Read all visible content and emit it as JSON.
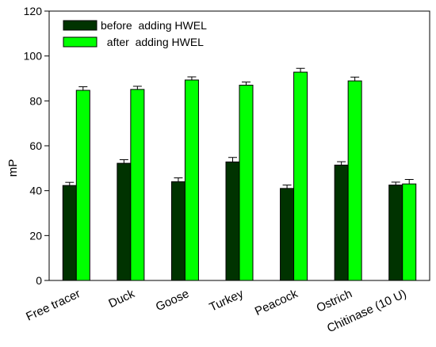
{
  "chart_data": {
    "type": "bar",
    "title": "",
    "xlabel": "",
    "ylabel": "mP",
    "ylim": [
      0,
      120
    ],
    "yticks": [
      0,
      20,
      40,
      60,
      80,
      100,
      120
    ],
    "grid": false,
    "legend_position": "top-left",
    "categories": [
      "Free tracer",
      "Duck",
      "Goose",
      "Turkey",
      "Peacock",
      "Ostrich",
      "Chitinase (10 U)"
    ],
    "series": [
      {
        "name": "before  adding HWEL",
        "color": "#003300",
        "values": [
          42.3,
          52.2,
          44.0,
          52.8,
          41.0,
          51.4,
          42.5
        ],
        "errors": [
          1.4,
          1.6,
          1.7,
          2.0,
          1.5,
          1.5,
          1.3
        ]
      },
      {
        "name": "  after  adding HWEL",
        "color": "#00ff00",
        "values": [
          84.7,
          85.1,
          89.3,
          87.0,
          92.8,
          88.9,
          43.0
        ],
        "errors": [
          1.6,
          1.4,
          1.4,
          1.4,
          1.7,
          1.7,
          2.0
        ]
      }
    ]
  }
}
